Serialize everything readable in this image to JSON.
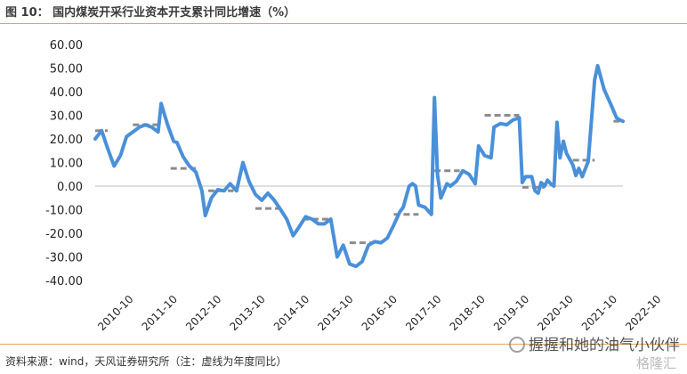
{
  "header": {
    "title": "图 10： 国内煤炭开采行业资本开支累计同比增速（%）"
  },
  "footer": {
    "source": "资料来源：wind，天风证券研究所（注：虚线为年度同比）"
  },
  "watermark": {
    "text": "握握和她的油气小伙伴",
    "logo_text": "格隆汇"
  },
  "colors": {
    "line": "#4a90d9",
    "dash": "#8c8c8c",
    "rule": "#e2a35b"
  },
  "chart_data": {
    "type": "line",
    "title": "图 10： 国内煤炭开采行业资本开支累计同比增速（%）",
    "xlabel": "",
    "ylabel": "",
    "ylim": [
      -40,
      60
    ],
    "y_ticks": [
      "60.00",
      "50.00",
      "40.00",
      "30.00",
      "20.00",
      "10.00",
      "0.00",
      "-10.00",
      "-20.00",
      "-30.00",
      "-40.00"
    ],
    "x_ticks": [
      "2010-10",
      "2011-10",
      "2012-10",
      "2013-10",
      "2014-10",
      "2015-10",
      "2016-10",
      "2017-10",
      "2018-10",
      "2019-10",
      "2020-10",
      "2021-10",
      "2022-10"
    ],
    "grid": false,
    "legend": "none",
    "series": [
      {
        "style": "solid",
        "points": [
          [
            2010.0,
            20
          ],
          [
            2010.17,
            23.5
          ],
          [
            2010.33,
            16
          ],
          [
            2010.5,
            8.5
          ],
          [
            2010.67,
            13
          ],
          [
            2010.83,
            21
          ],
          [
            2011.0,
            23
          ],
          [
            2011.17,
            25
          ],
          [
            2011.33,
            26
          ],
          [
            2011.5,
            25
          ],
          [
            2011.67,
            23
          ],
          [
            2011.75,
            35
          ],
          [
            2011.92,
            26
          ],
          [
            2012.08,
            19
          ],
          [
            2012.17,
            18.5
          ],
          [
            2012.33,
            12.5
          ],
          [
            2012.5,
            8.5
          ],
          [
            2012.67,
            6
          ],
          [
            2012.83,
            -2
          ],
          [
            2012.92,
            -12.5
          ],
          [
            2013.08,
            -5
          ],
          [
            2013.25,
            -1.5
          ],
          [
            2013.42,
            -2
          ],
          [
            2013.58,
            1
          ],
          [
            2013.75,
            -2
          ],
          [
            2013.92,
            10
          ],
          [
            2014.08,
            2
          ],
          [
            2014.25,
            -3.5
          ],
          [
            2014.42,
            -6
          ],
          [
            2014.58,
            -3
          ],
          [
            2014.75,
            -6
          ],
          [
            2014.92,
            -10
          ],
          [
            2015.08,
            -14
          ],
          [
            2015.25,
            -21
          ],
          [
            2015.42,
            -17
          ],
          [
            2015.58,
            -13
          ],
          [
            2015.75,
            -14
          ],
          [
            2015.92,
            -16
          ],
          [
            2016.08,
            -16
          ],
          [
            2016.25,
            -14
          ],
          [
            2016.42,
            -30
          ],
          [
            2016.58,
            -25
          ],
          [
            2016.75,
            -33
          ],
          [
            2016.92,
            -34
          ],
          [
            2017.08,
            -32
          ],
          [
            2017.25,
            -25
          ],
          [
            2017.42,
            -23.5
          ],
          [
            2017.58,
            -24
          ],
          [
            2017.75,
            -22
          ],
          [
            2017.92,
            -16.5
          ],
          [
            2018.08,
            -11
          ],
          [
            2018.17,
            -9
          ],
          [
            2018.33,
            0
          ],
          [
            2018.42,
            1
          ],
          [
            2018.5,
            0
          ],
          [
            2018.58,
            -8
          ],
          [
            2018.75,
            -9
          ],
          [
            2018.92,
            -12
          ],
          [
            2019.0,
            37.5
          ],
          [
            2019.08,
            5
          ],
          [
            2019.17,
            -5
          ],
          [
            2019.33,
            1
          ],
          [
            2019.42,
            0
          ],
          [
            2019.58,
            2
          ],
          [
            2019.75,
            6.5
          ],
          [
            2019.92,
            5
          ],
          [
            2020.08,
            1
          ],
          [
            2020.17,
            17
          ],
          [
            2020.33,
            13
          ],
          [
            2020.5,
            12
          ],
          [
            2020.58,
            25
          ],
          [
            2020.75,
            26.5
          ],
          [
            2020.92,
            26
          ],
          [
            2021.08,
            28
          ],
          [
            2021.25,
            29
          ],
          [
            2021.33,
            1.5
          ],
          [
            2021.42,
            4
          ],
          [
            2021.58,
            4
          ],
          [
            2021.67,
            -2
          ],
          [
            2021.75,
            -3
          ],
          [
            2021.83,
            1.5
          ],
          [
            2021.92,
            0
          ],
          [
            2022.0,
            2.5
          ],
          [
            2022.08,
            1
          ],
          [
            2022.17,
            0
          ],
          [
            2022.25,
            27
          ],
          [
            2022.33,
            12
          ],
          [
            2022.42,
            19
          ],
          [
            2022.5,
            14
          ],
          [
            2022.67,
            9
          ],
          [
            2022.75,
            4.5
          ],
          [
            2022.83,
            7.5
          ],
          [
            2022.92,
            4
          ],
          [
            2023.08,
            10.5
          ],
          [
            2023.25,
            45
          ],
          [
            2023.33,
            51
          ],
          [
            2023.5,
            41
          ],
          [
            2023.67,
            35
          ],
          [
            2023.83,
            29
          ],
          [
            2023.92,
            28
          ],
          [
            2024.0,
            27.5
          ]
        ]
      },
      {
        "style": "dashed",
        "segments": [
          {
            "x0": 2010.0,
            "x1": 2010.33,
            "y": 23.5
          },
          {
            "x0": 2011.0,
            "x1": 2011.67,
            "y": 26
          },
          {
            "x0": 2012.0,
            "x1": 2012.67,
            "y": 7.5
          },
          {
            "x0": 2013.0,
            "x1": 2013.67,
            "y": -2
          },
          {
            "x0": 2014.25,
            "x1": 2014.92,
            "y": -9.5
          },
          {
            "x0": 2015.5,
            "x1": 2016.25,
            "y": -14
          },
          {
            "x0": 2016.75,
            "x1": 2017.42,
            "y": -24
          },
          {
            "x0": 2017.92,
            "x1": 2018.58,
            "y": -12
          },
          {
            "x0": 2019.0,
            "x1": 2019.67,
            "y": 6.5
          },
          {
            "x0": 2020.33,
            "x1": 2021.25,
            "y": 30
          },
          {
            "x0": 2021.33,
            "x1": 2021.92,
            "y": -0.5
          },
          {
            "x0": 2022.67,
            "x1": 2023.25,
            "y": 11
          },
          {
            "x0": 2023.75,
            "x1": 2024.0,
            "y": 27.5
          }
        ]
      }
    ]
  }
}
